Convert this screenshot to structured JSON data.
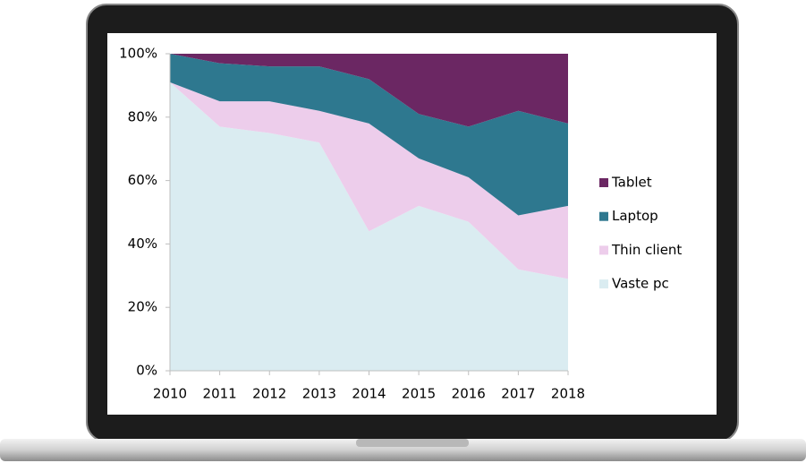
{
  "chart_data": {
    "type": "stacked-area",
    "categories": [
      "2010",
      "2011",
      "2012",
      "2013",
      "2014",
      "2015",
      "2016",
      "2017",
      "2018"
    ],
    "series": [
      {
        "name": "Vaste pc",
        "color": "#daecf1",
        "values": [
          91,
          77,
          75,
          72,
          44,
          52,
          47,
          32,
          29
        ]
      },
      {
        "name": "Thin client",
        "color": "#edcdeb",
        "values": [
          0,
          8,
          10,
          10,
          34,
          15,
          14,
          17,
          23
        ]
      },
      {
        "name": "Laptop",
        "color": "#2e788f",
        "values": [
          9,
          12,
          11,
          14,
          14,
          14,
          16,
          33,
          26
        ]
      },
      {
        "name": "Tablet",
        "color": "#6b2763",
        "values": [
          0,
          3,
          4,
          4,
          8,
          19,
          23,
          18,
          22
        ]
      }
    ],
    "ylim": [
      0,
      100
    ],
    "yticks": [
      {
        "value": 0,
        "label": "0%"
      },
      {
        "value": 20,
        "label": "20%"
      },
      {
        "value": 40,
        "label": "40%"
      },
      {
        "value": 60,
        "label": "60%"
      },
      {
        "value": 80,
        "label": "80%"
      },
      {
        "value": 100,
        "label": "100%"
      }
    ],
    "legend": "right"
  }
}
